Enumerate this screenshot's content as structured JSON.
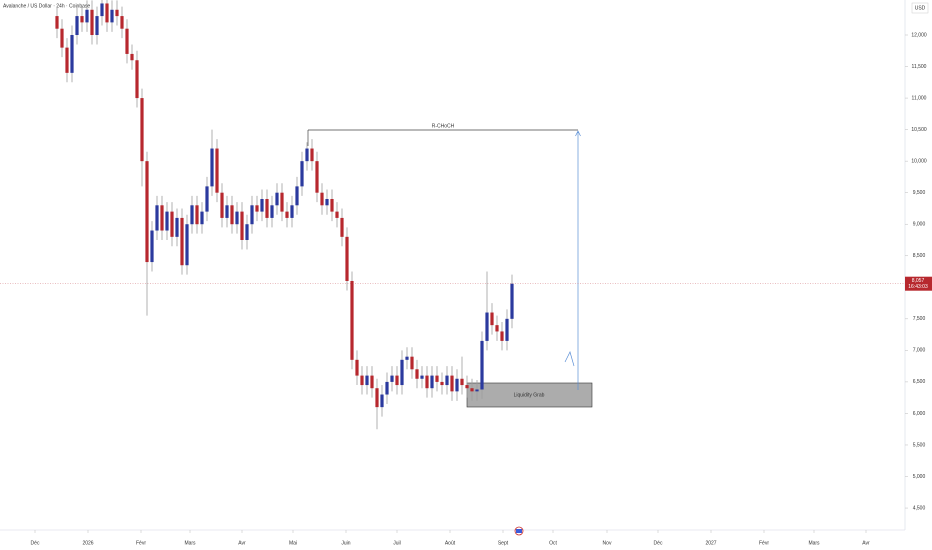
{
  "chart_data": {
    "type": "candlestick",
    "title": "Avalanche / US Dollar · 24h · Coinbase",
    "currency": "USD",
    "up_color": "#2b3a9e",
    "down_color": "#b7282e",
    "open": [
      12.3,
      12.1,
      11.8,
      11.4,
      12.0,
      12.3,
      12.2,
      12.4,
      12.0,
      12.3,
      12.5,
      12.2,
      12.4,
      12.3,
      12.1,
      11.7,
      11.6,
      11.0,
      10.0,
      8.4,
      8.9,
      9.3,
      8.9,
      9.2,
      8.8,
      9.1,
      8.35,
      9.0,
      9.3,
      9.0,
      9.2,
      9.6,
      10.2,
      9.5,
      9.1,
      9.3,
      9.0,
      9.2,
      8.75,
      9.0,
      9.3,
      9.2,
      9.4,
      9.1,
      9.3,
      9.5,
      9.2,
      9.1,
      9.3,
      9.6,
      10.0,
      10.2,
      10.0,
      9.5,
      9.3,
      9.4,
      9.2,
      9.1,
      8.8,
      8.1,
      6.85,
      6.6,
      6.45,
      6.6,
      6.4,
      6.1,
      6.3,
      6.5,
      6.6,
      6.45,
      6.85,
      6.9,
      6.7,
      6.55,
      6.6,
      6.4,
      6.6,
      6.5,
      6.45,
      6.6,
      6.35,
      6.55,
      6.45,
      6.4,
      6.35,
      6.38,
      7.15,
      7.6,
      7.4,
      7.3,
      7.15,
      7.5
    ],
    "high": [
      12.45,
      12.25,
      11.95,
      12.15,
      12.45,
      12.45,
      12.55,
      12.55,
      12.45,
      12.65,
      12.65,
      12.55,
      12.55,
      12.45,
      12.25,
      11.85,
      11.75,
      11.15,
      10.15,
      9.05,
      9.45,
      9.45,
      9.35,
      9.35,
      9.25,
      9.25,
      9.15,
      9.45,
      9.45,
      9.35,
      9.75,
      10.5,
      10.35,
      9.65,
      9.45,
      9.45,
      9.35,
      9.35,
      9.15,
      9.45,
      9.45,
      9.55,
      9.55,
      9.45,
      9.65,
      9.65,
      9.35,
      9.45,
      9.75,
      10.15,
      10.3,
      10.35,
      10.15,
      9.65,
      9.55,
      9.55,
      9.35,
      9.25,
      8.95,
      8.25,
      7.0,
      6.75,
      6.75,
      6.75,
      6.55,
      6.45,
      6.65,
      6.75,
      6.75,
      7.0,
      7.05,
      7.05,
      6.85,
      6.75,
      6.75,
      6.75,
      6.75,
      6.65,
      6.75,
      6.75,
      6.7,
      6.9,
      6.6,
      6.55,
      6.53,
      7.3,
      8.25,
      7.75,
      7.55,
      7.45,
      7.65,
      8.2
    ],
    "low": [
      11.95,
      11.65,
      11.25,
      11.25,
      11.85,
      12.05,
      12.05,
      11.85,
      11.85,
      12.15,
      12.05,
      12.05,
      12.15,
      11.95,
      11.55,
      11.45,
      10.85,
      9.6,
      7.55,
      8.25,
      8.75,
      8.75,
      8.75,
      8.65,
      8.65,
      8.2,
      8.2,
      8.85,
      8.85,
      8.85,
      9.05,
      9.45,
      9.35,
      8.95,
      8.95,
      8.85,
      8.85,
      8.6,
      8.6,
      8.85,
      9.05,
      9.05,
      8.95,
      8.95,
      9.15,
      9.05,
      8.95,
      8.95,
      9.15,
      9.45,
      9.85,
      9.85,
      9.35,
      9.15,
      9.15,
      9.05,
      8.95,
      8.65,
      7.95,
      6.7,
      6.45,
      6.3,
      6.3,
      6.25,
      5.75,
      5.95,
      6.15,
      6.35,
      6.3,
      6.3,
      6.7,
      6.55,
      6.4,
      6.4,
      6.25,
      6.25,
      6.35,
      6.3,
      6.3,
      6.2,
      6.2,
      6.3,
      6.25,
      6.2,
      6.2,
      6.23,
      7.0,
      7.25,
      7.15,
      7.0,
      7.0,
      7.35
    ],
    "close": [
      12.1,
      11.8,
      11.4,
      12.0,
      12.3,
      12.2,
      12.4,
      12.0,
      12.3,
      12.5,
      12.2,
      12.4,
      12.3,
      12.1,
      11.7,
      11.6,
      11.0,
      10.0,
      8.4,
      8.9,
      9.3,
      8.9,
      9.2,
      8.8,
      9.1,
      8.35,
      9.0,
      9.3,
      9.0,
      9.2,
      9.6,
      10.2,
      9.5,
      9.1,
      9.3,
      9.0,
      9.2,
      8.75,
      9.0,
      9.3,
      9.2,
      9.4,
      9.1,
      9.3,
      9.5,
      9.2,
      9.1,
      9.3,
      9.6,
      10.0,
      10.2,
      10.0,
      9.5,
      9.3,
      9.4,
      9.2,
      9.1,
      8.8,
      8.1,
      6.85,
      6.6,
      6.45,
      6.6,
      6.4,
      6.1,
      6.3,
      6.5,
      6.6,
      6.45,
      6.85,
      6.9,
      6.7,
      6.55,
      6.6,
      6.4,
      6.6,
      6.5,
      6.45,
      6.6,
      6.35,
      6.55,
      6.45,
      6.4,
      6.35,
      6.38,
      7.15,
      7.6,
      7.4,
      7.3,
      7.15,
      7.5,
      8.057
    ],
    "xlim": [
      -11.4,
      169.6
    ],
    "xticks": [
      {
        "value": -4.4,
        "label": "Déc"
      },
      {
        "value": 6.2,
        "label": "2026"
      },
      {
        "value": 16.8,
        "label": "Févr"
      },
      {
        "value": 26.6,
        "label": "Mars"
      },
      {
        "value": 37,
        "label": "Avr"
      },
      {
        "value": 47.2,
        "label": "Mai"
      },
      {
        "value": 57.8,
        "label": "Juin"
      },
      {
        "value": 68,
        "label": "Juil"
      },
      {
        "value": 78.6,
        "label": "Août"
      },
      {
        "value": 89.2,
        "label": "Sept"
      },
      {
        "value": 99.2,
        "label": "Oct"
      },
      {
        "value": 110,
        "label": "Nov"
      },
      {
        "value": 120.2,
        "label": "Déc"
      },
      {
        "value": 130.8,
        "label": "2027"
      },
      {
        "value": 141.4,
        "label": "Févr"
      },
      {
        "value": 151.4,
        "label": "Mars"
      },
      {
        "value": 161.8,
        "label": "Avr"
      }
    ],
    "ylim": [
      4.152,
      12.555
    ],
    "yticks": [
      {
        "value": 12,
        "label": "12,000"
      },
      {
        "value": 11.5,
        "label": "11,500"
      },
      {
        "value": 11,
        "label": "11,000"
      },
      {
        "value": 10.5,
        "label": "10,500"
      },
      {
        "value": 10,
        "label": "10,000"
      },
      {
        "value": 9.5,
        "label": "9,500"
      },
      {
        "value": 9,
        "label": "9,000"
      },
      {
        "value": 8.5,
        "label": "8,500"
      },
      {
        "value": 7.5,
        "label": "7,500"
      },
      {
        "value": 7,
        "label": "7,000"
      },
      {
        "value": 6.5,
        "label": "6,500"
      },
      {
        "value": 6,
        "label": "6,000"
      },
      {
        "value": 5.5,
        "label": "5,500"
      },
      {
        "value": 5,
        "label": "5,000"
      },
      {
        "value": 4.5,
        "label": "4,500"
      }
    ],
    "last_price": {
      "value": 8.057,
      "label": "8,057"
    },
    "countdown": "16:43:03",
    "annotations": [
      {
        "text": "R-CHoCH"
      },
      {
        "text": "Liquidity Grab"
      }
    ]
  }
}
